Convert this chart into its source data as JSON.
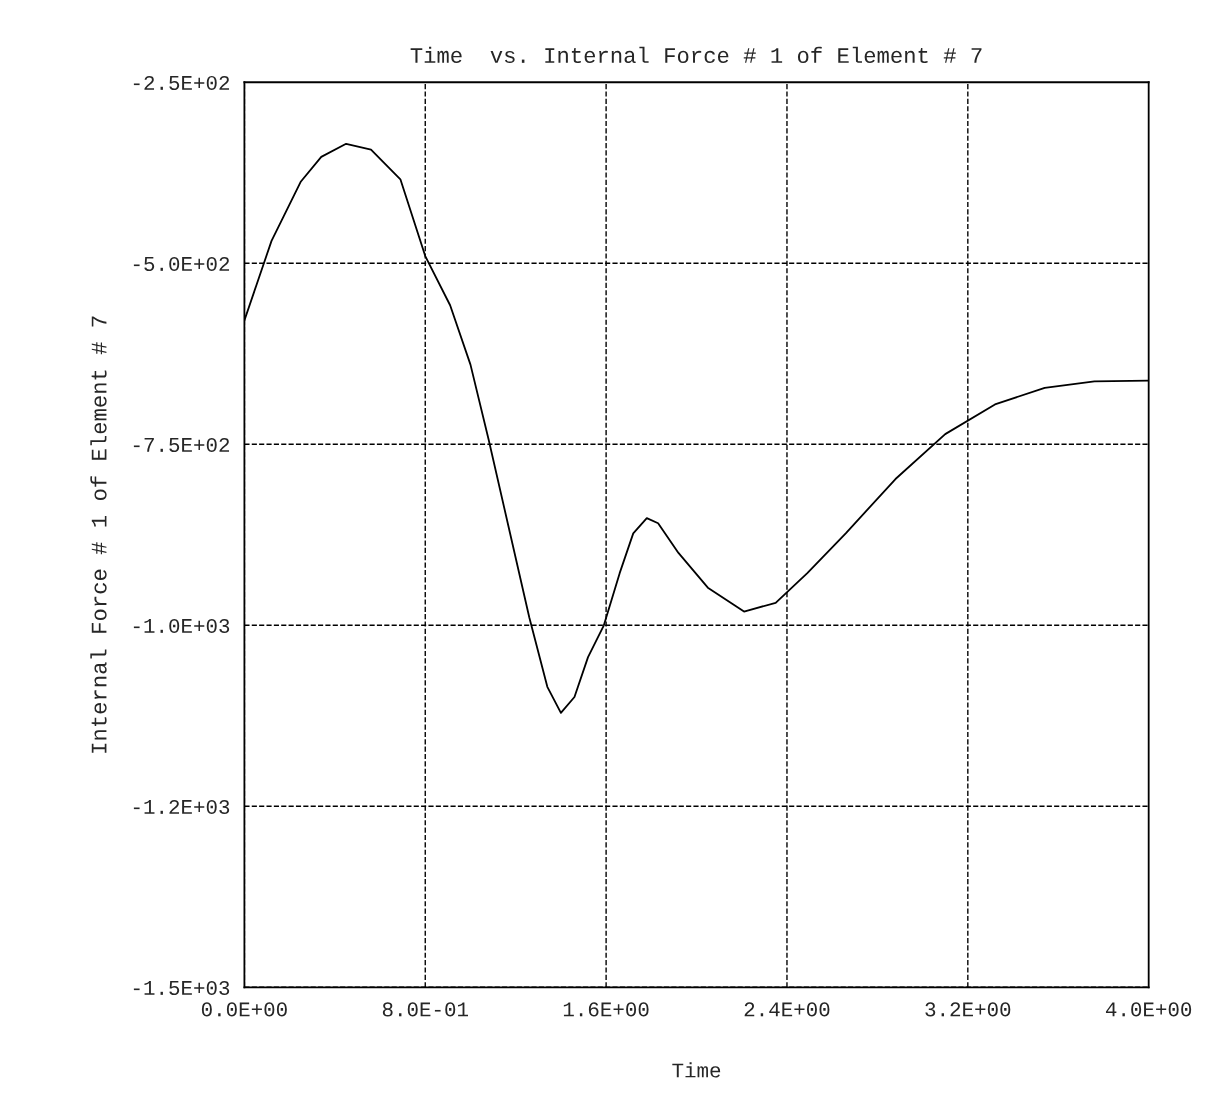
{
  "chart_data": {
    "type": "line",
    "title": "Time  vs. Internal Force # 1 of Element # 7",
    "xlabel": "Time",
    "ylabel": "Internal Force # 1 of Element # 7",
    "series": [
      {
        "color": "#000000",
        "x": [
          0,
          0.12,
          0.25,
          0.34,
          0.45,
          0.56,
          0.69,
          0.8,
          0.91,
          1.0,
          1.08,
          1.17,
          1.26,
          1.34,
          1.4,
          1.46,
          1.52,
          1.59,
          1.66,
          1.72,
          1.78,
          1.83,
          1.92,
          2.05,
          2.21,
          2.35,
          2.49,
          2.66,
          2.88,
          3.1,
          3.32,
          3.54,
          3.76,
          4.0
        ],
        "values": [
          -579,
          -469,
          -387,
          -353,
          -335,
          -343,
          -384,
          -490,
          -558,
          -640,
          -743,
          -866,
          -989,
          -1085,
          -1121,
          -1099,
          -1044,
          -1000,
          -928,
          -873,
          -852,
          -859,
          -900,
          -948,
          -981,
          -969,
          -928,
          -873,
          -798,
          -736,
          -695,
          -672,
          -663,
          -662
        ]
      }
    ],
    "xlim": [
      0,
      4.0
    ],
    "ylim": [
      -1500,
      -250
    ],
    "xticks": [
      {
        "value": 0,
        "label": "0.0E+00"
      },
      {
        "value": 0.8,
        "label": "8.0E-01"
      },
      {
        "value": 1.6,
        "label": "1.6E+00"
      },
      {
        "value": 2.4,
        "label": "2.4E+00"
      },
      {
        "value": 3.2,
        "label": "3.2E+00"
      },
      {
        "value": 4.0,
        "label": "4.0E+00"
      }
    ],
    "yticks": [
      {
        "value": -250,
        "label": "-2.5E+02"
      },
      {
        "value": -500,
        "label": "-5.0E+02"
      },
      {
        "value": -750,
        "label": "-7.5E+02"
      },
      {
        "value": -1000,
        "label": "-1.0E+03"
      },
      {
        "value": -1250,
        "label": "-1.2E+03"
      },
      {
        "value": -1500,
        "label": "-1.5E+03"
      }
    ],
    "grid": true,
    "line_style": "solid"
  }
}
